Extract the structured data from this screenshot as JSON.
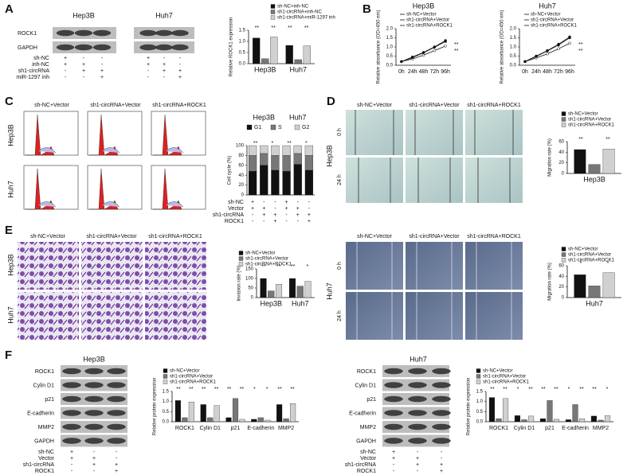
{
  "figure": {
    "panel_labels": [
      "A",
      "B",
      "C",
      "D",
      "E",
      "F"
    ],
    "a": {
      "cell_lines": [
        "Hep3B",
        "Huh7"
      ],
      "blot_rows": [
        "ROCK1",
        "GAPDH"
      ],
      "conditions": [
        {
          "label": "sh-NC",
          "signs": [
            "+",
            "-",
            "-",
            "+",
            "-",
            "-"
          ]
        },
        {
          "label": "inh-NC",
          "signs": [
            "+",
            "+",
            "-",
            "+",
            "+",
            "-"
          ]
        },
        {
          "label": "sh1-circRNA",
          "signs": [
            "-",
            "+",
            "+",
            "-",
            "+",
            "+"
          ]
        },
        {
          "label": "miR-1297 inh",
          "signs": [
            "-",
            "-",
            "+",
            "-",
            "-",
            "+"
          ]
        }
      ]
    },
    "c": {
      "columns": [
        "sh-NC+Vector",
        "sh1-circRNA+Vector",
        "sh1-circRNA+ROCK1"
      ],
      "rows": [
        "Hep3B",
        "Huh7"
      ],
      "conditions": [
        {
          "label": "sh-NC",
          "signs": [
            "+",
            "-",
            "-",
            "+",
            "-",
            "-"
          ]
        },
        {
          "label": "Vector",
          "signs": [
            "+",
            "+",
            "-",
            "+",
            "+",
            "-"
          ]
        },
        {
          "label": "sh1-circRNA",
          "signs": [
            "-",
            "+",
            "+",
            "-",
            "+",
            "+"
          ]
        },
        {
          "label": "ROCK1",
          "signs": [
            "-",
            "-",
            "+",
            "-",
            "-",
            "+"
          ]
        }
      ]
    },
    "d": {
      "columns": [
        "sh-NC+Vector",
        "sh1-circRNA+Vector",
        "sh1-circRNA+ROCK1"
      ],
      "rows": [
        "0 h",
        "24 h"
      ],
      "cell_line": "Hep3B"
    },
    "e": {
      "columns": [
        "sh-NC+Vector",
        "sh1-circRNA+Vector",
        "sh1-circRNA+ROCK1"
      ],
      "rows": [
        "Hep3B",
        "Huh7"
      ]
    },
    "e_wound": {
      "columns": [
        "sh-NC+Vector",
        "sh1-circRNA+Vector",
        "sh1-circRNA+ROCK1"
      ],
      "rows": [
        "0 h",
        "24 h"
      ],
      "cell_line": "Huh7"
    },
    "f": [
      {
        "cell_line": "Hep3B",
        "blot_rows": [
          "ROCK1",
          "Cylin D1",
          "p21",
          "E-cadherin",
          "MMP2",
          "GAPDH"
        ],
        "conditions": [
          {
            "label": "sh-NC",
            "signs": [
              "+",
              "-",
              "-"
            ]
          },
          {
            "label": "Vector",
            "signs": [
              "+",
              "+",
              "-"
            ]
          },
          {
            "label": "sh1-circRNA",
            "signs": [
              "-",
              "+",
              "+"
            ]
          },
          {
            "label": "ROCK1",
            "signs": [
              "-",
              "-",
              "+"
            ]
          }
        ]
      },
      {
        "cell_line": "Huh7",
        "blot_rows": [
          "ROCK1",
          "Cylin D1",
          "p21",
          "E-cadherin",
          "MMP2",
          "GAPDH"
        ],
        "conditions": [
          {
            "label": "sh-NC",
            "signs": [
              "+",
              "-",
              "-"
            ]
          },
          {
            "label": "Vector",
            "signs": [
              "+",
              "+",
              "-"
            ]
          },
          {
            "label": "sh1-circRNA",
            "signs": [
              "-",
              "+",
              "+"
            ]
          },
          {
            "label": "ROCK1",
            "signs": [
              "-",
              "-",
              "+"
            ]
          }
        ]
      }
    ]
  },
  "chart_data": [
    {
      "type": "bar",
      "y_label": "Relative ROCK1 expression",
      "categories": [
        "Hep3B",
        "Huh7"
      ],
      "series": [
        {
          "name": "sh-NC+inh-NC",
          "color": "#111111",
          "values": [
            1.15,
            0.82
          ]
        },
        {
          "name": "sh1-circRNA+inh-NC",
          "color": "#777777",
          "values": [
            0.22,
            0.18
          ]
        },
        {
          "name": "sh1-circRNA+miR-1297 inh",
          "color": "#d0d0d0",
          "values": [
            1.2,
            0.8
          ]
        }
      ],
      "ylim": [
        0,
        1.5
      ],
      "yticks": [
        {
          "value": 0,
          "label": "0.0"
        },
        {
          "value": 0.5,
          "label": "0.5"
        },
        {
          "value": 1,
          "label": "1.0"
        },
        {
          "value": 1.5,
          "label": "1.5"
        }
      ],
      "significance": [
        "**",
        "**",
        "**",
        "**"
      ]
    },
    {
      "type": "line",
      "title": "Hep3B",
      "y_label": "Relative absorbance (OD=450 nm)",
      "categories": [
        "0h",
        "24h",
        "48h",
        "72h",
        "96h"
      ],
      "series": [
        {
          "name": "sh-NC+Vector",
          "color": "#111111",
          "values": [
            0.2,
            0.45,
            0.7,
            1.0,
            1.35
          ]
        },
        {
          "name": "sh1-circRNA+Vector",
          "color": "#111111",
          "values": [
            0.2,
            0.35,
            0.55,
            0.8,
            1.05
          ]
        },
        {
          "name": "sh1-circRNA+ROCK1",
          "color": "#111111",
          "values": [
            0.2,
            0.42,
            0.68,
            0.98,
            1.3
          ]
        }
      ],
      "ylim": [
        0,
        2
      ],
      "yticks": [
        {
          "value": 0,
          "label": "0.0"
        },
        {
          "value": 0.5,
          "label": "0.5"
        },
        {
          "value": 1,
          "label": "1.0"
        },
        {
          "value": 1.5,
          "label": "1.5"
        },
        {
          "value": 2,
          "label": "2.0"
        }
      ],
      "significance": [
        "**",
        "**"
      ]
    },
    {
      "type": "line",
      "title": "Huh7",
      "y_label": "Relative absorbance (OD=450 nm)",
      "categories": [
        "0h",
        "24h",
        "48h",
        "72h",
        "96h"
      ],
      "series": [
        {
          "name": "sh-NC+Vector",
          "color": "#111111",
          "values": [
            0.2,
            0.5,
            0.8,
            1.15,
            1.55
          ]
        },
        {
          "name": "sh1-circRNA+Vector",
          "color": "#111111",
          "values": [
            0.2,
            0.4,
            0.62,
            0.9,
            1.2
          ]
        },
        {
          "name": "sh1-circRNA+ROCK1",
          "color": "#111111",
          "values": [
            0.2,
            0.48,
            0.78,
            1.1,
            1.5
          ]
        }
      ],
      "ylim": [
        0,
        2
      ],
      "yticks": [
        {
          "value": 0,
          "label": "0.0"
        },
        {
          "value": 0.5,
          "label": "0.5"
        },
        {
          "value": 1,
          "label": "1.0"
        },
        {
          "value": 1.5,
          "label": "1.5"
        },
        {
          "value": 2,
          "label": "2.0"
        }
      ],
      "significance": [
        "**",
        "**"
      ]
    },
    {
      "type": "stacked",
      "y_label": "Cell cycle (%)",
      "group_labels": [
        "Hep3B",
        "Huh7"
      ],
      "categories": [
        null,
        null,
        null,
        null,
        null,
        null
      ],
      "series": [
        {
          "name": "G1",
          "color": "#111111",
          "values": [
            48,
            60,
            50,
            48,
            62,
            50
          ]
        },
        {
          "name": "S",
          "color": "#777777",
          "values": [
            32,
            24,
            30,
            32,
            22,
            30
          ]
        },
        {
          "name": "G2",
          "color": "#d0d0d0",
          "values": [
            20,
            16,
            20,
            20,
            16,
            20
          ]
        }
      ],
      "ylim": [
        0,
        100
      ],
      "yticks": [
        0,
        20,
        40,
        60,
        80,
        100
      ],
      "significance": [
        "**",
        "*",
        "**",
        "*"
      ]
    },
    {
      "type": "bar",
      "y_label": "Migration rate (%)",
      "categories": [
        "Hep3B"
      ],
      "series": [
        {
          "name": "sh-NC+Vector",
          "color": "#111111",
          "values": [
            45
          ]
        },
        {
          "name": "sh1-circRNA+Vector",
          "color": "#777777",
          "values": [
            17
          ]
        },
        {
          "name": "sh1-circRNA+ROCK1",
          "color": "#d0d0d0",
          "values": [
            46
          ]
        }
      ],
      "ylim": [
        0,
        60
      ],
      "yticks": [
        0,
        20,
        40,
        60
      ],
      "significance": [
        "**",
        "**"
      ]
    },
    {
      "type": "bar",
      "y_label": "Invasion rate (%)",
      "categories": [
        "Hep3B",
        "Huh7"
      ],
      "series": [
        {
          "name": "sh-NC+Vector",
          "color": "#111111",
          "values": [
            100,
            100
          ]
        },
        {
          "name": "sh1-circRNA+Vector",
          "color": "#777777",
          "values": [
            35,
            60
          ]
        },
        {
          "name": "sh1-circRNA+ROCK1",
          "color": "#d0d0d0",
          "values": [
            70,
            85
          ]
        }
      ],
      "ylim": [
        0,
        150
      ],
      "yticks": [
        0,
        50,
        100,
        150
      ],
      "significance": [
        "**",
        "**",
        "**",
        "*"
      ]
    },
    {
      "type": "bar",
      "y_label": "Migration rate (%)",
      "categories": [
        "Huh7"
      ],
      "series": [
        {
          "name": "sh-NC+Vector",
          "color": "#111111",
          "values": [
            43
          ]
        },
        {
          "name": "sh1-circRNA+Vector",
          "color": "#777777",
          "values": [
            22
          ]
        },
        {
          "name": "sh1-circRNA+ROCK1",
          "color": "#d0d0d0",
          "values": [
            47
          ]
        }
      ],
      "ylim": [
        0,
        60
      ],
      "yticks": [
        0,
        20,
        40,
        60
      ],
      "significance": [
        "*",
        "*"
      ]
    },
    {
      "type": "bar",
      "y_label": "Relative protein expression",
      "categories": [
        "ROCK1",
        "Cylin D1",
        "p21",
        "E-cadherin",
        "MMP2"
      ],
      "series": [
        {
          "name": "sh-NC+Vector",
          "color": "#111111",
          "values": [
            1.05,
            0.85,
            0.2,
            0.12,
            0.85
          ]
        },
        {
          "name": "sh1-circRNA+Vector",
          "color": "#777777",
          "values": [
            0.2,
            0.2,
            1.15,
            0.2,
            0.15
          ]
        },
        {
          "name": "sh1-circRNA+ROCK1",
          "color": "#d0d0d0",
          "values": [
            0.98,
            0.8,
            0.12,
            0.08,
            0.9
          ]
        }
      ],
      "ylim": [
        0,
        1.5
      ],
      "yticks": [
        {
          "value": 0,
          "label": "0.0"
        },
        {
          "value": 0.5,
          "label": "0.5"
        },
        {
          "value": 1,
          "label": "1.0"
        },
        {
          "value": 1.5,
          "label": "1.5"
        }
      ],
      "significance": [
        "**",
        "**",
        "**",
        "**",
        "**",
        "**",
        "*",
        "*",
        "**",
        "**"
      ]
    },
    {
      "type": "bar",
      "y_label": "Relative protein expression",
      "categories": [
        "ROCK1",
        "Cylin D1",
        "p21",
        "E-cadherin",
        "MMP2"
      ],
      "series": [
        {
          "name": "sh-NC+Vector",
          "color": "#111111",
          "values": [
            1.2,
            0.3,
            0.15,
            0.1,
            0.28
          ]
        },
        {
          "name": "sh1-circRNA+Vector",
          "color": "#777777",
          "values": [
            0.15,
            0.1,
            1.05,
            0.85,
            0.08
          ]
        },
        {
          "name": "sh1-circRNA+ROCK1",
          "color": "#d0d0d0",
          "values": [
            1.15,
            0.28,
            0.12,
            0.15,
            0.3
          ]
        }
      ],
      "ylim": [
        0,
        1.5
      ],
      "yticks": [
        {
          "value": 0,
          "label": "0.0"
        },
        {
          "value": 0.5,
          "label": "0.5"
        },
        {
          "value": 1,
          "label": "1.0"
        },
        {
          "value": 1.5,
          "label": "1.5"
        }
      ],
      "significance": [
        "**",
        "**",
        "*",
        "**",
        "**",
        "**",
        "*",
        "**",
        "**",
        "*"
      ]
    }
  ]
}
